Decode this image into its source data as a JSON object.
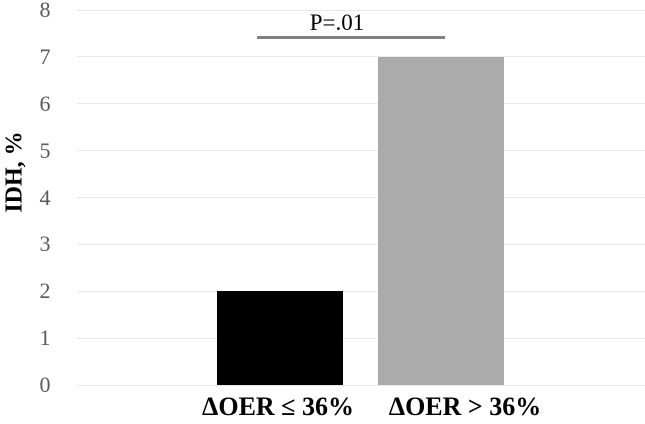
{
  "chart_data": {
    "type": "bar",
    "title": "",
    "categories": [
      "ΔOER ≤ 36%",
      "ΔOER > 36%"
    ],
    "values": [
      2,
      7
    ],
    "bar_colors": [
      "#000000",
      "#ABABAB"
    ],
    "xlabel": "",
    "ylabel": "IDH, %",
    "ylim": [
      0,
      8
    ],
    "yticks": [
      0,
      1,
      2,
      3,
      4,
      5,
      6,
      7,
      8
    ],
    "grid": true,
    "legend": false,
    "annotation": {
      "text": "P=.01",
      "compares": [
        "ΔOER ≤ 36%",
        "ΔOER > 36%"
      ]
    },
    "colors": {
      "gridline": "#E8E8E8",
      "tick_label": "#595959",
      "significance_line": "#808080",
      "category_label": "#000000",
      "axis_title": "#000000",
      "background": "#FFFFFF"
    }
  }
}
